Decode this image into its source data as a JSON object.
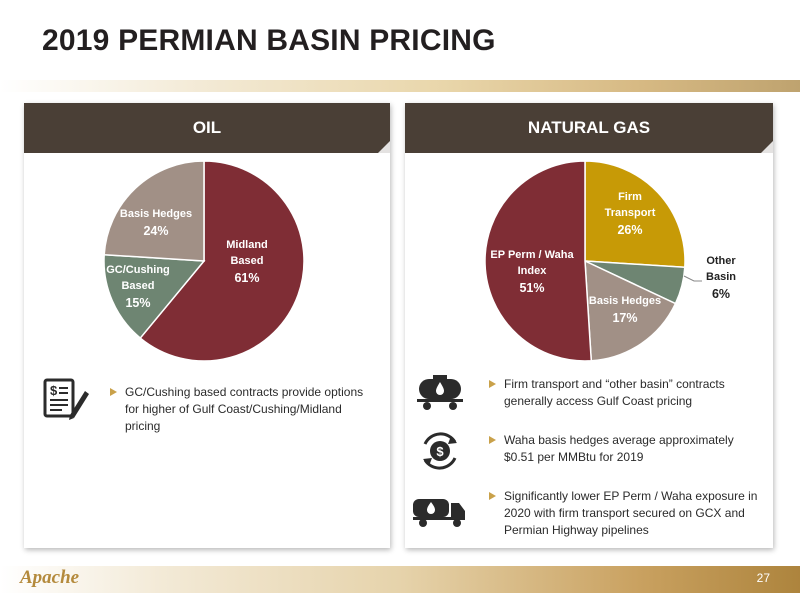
{
  "title": "2019 PERMIAN BASIN PRICING",
  "page_number": "27",
  "logo_text": "Apache",
  "colors": {
    "header_bg": "#4a3f36",
    "midland": "#7f2d35",
    "gc_cushing": "#6e8572",
    "basis_hedges": "#a19086",
    "firm_transport": "#c79a06",
    "other_basin": "#6e8572",
    "ep_perm": "#7f2d35",
    "bullet": "#c9a14a"
  },
  "oil": {
    "header": "OIL",
    "slices": [
      {
        "name_lines": [
          "Midland",
          "Based"
        ],
        "pct": "61%",
        "value": 61
      },
      {
        "name_lines": [
          "GC/Cushing",
          "Based"
        ],
        "pct": "15%",
        "value": 15
      },
      {
        "name_lines": [
          "Basis Hedges"
        ],
        "pct": "24%",
        "value": 24
      }
    ],
    "bullets": [
      "GC/Cushing based contracts provide options for higher of Gulf Coast/Cushing/Midland pricing"
    ],
    "icon": "contract-icon"
  },
  "gas": {
    "header": "NATURAL GAS",
    "slices": [
      {
        "name_lines": [
          "Firm",
          "Transport"
        ],
        "pct": "26%",
        "value": 26
      },
      {
        "name_lines": [
          "Other",
          "Basin"
        ],
        "pct": "6%",
        "value": 6
      },
      {
        "name_lines": [
          "Basis Hedges"
        ],
        "pct": "17%",
        "value": 17
      },
      {
        "name_lines": [
          "EP Perm / Waha",
          "Index"
        ],
        "pct": "51%",
        "value": 51
      }
    ],
    "bullets": [
      "Firm transport and “other basin” contracts generally access Gulf Coast pricing",
      "Waha basis hedges average approximately $0.51 per MMBtu for 2019",
      "Significantly lower EP Perm / Waha exposure in 2020 with firm transport secured on GCX and Permian Highway pipelines"
    ],
    "icons": [
      "tanker-railcar-icon",
      "dollar-cycle-icon",
      "tanker-truck-icon"
    ]
  }
}
